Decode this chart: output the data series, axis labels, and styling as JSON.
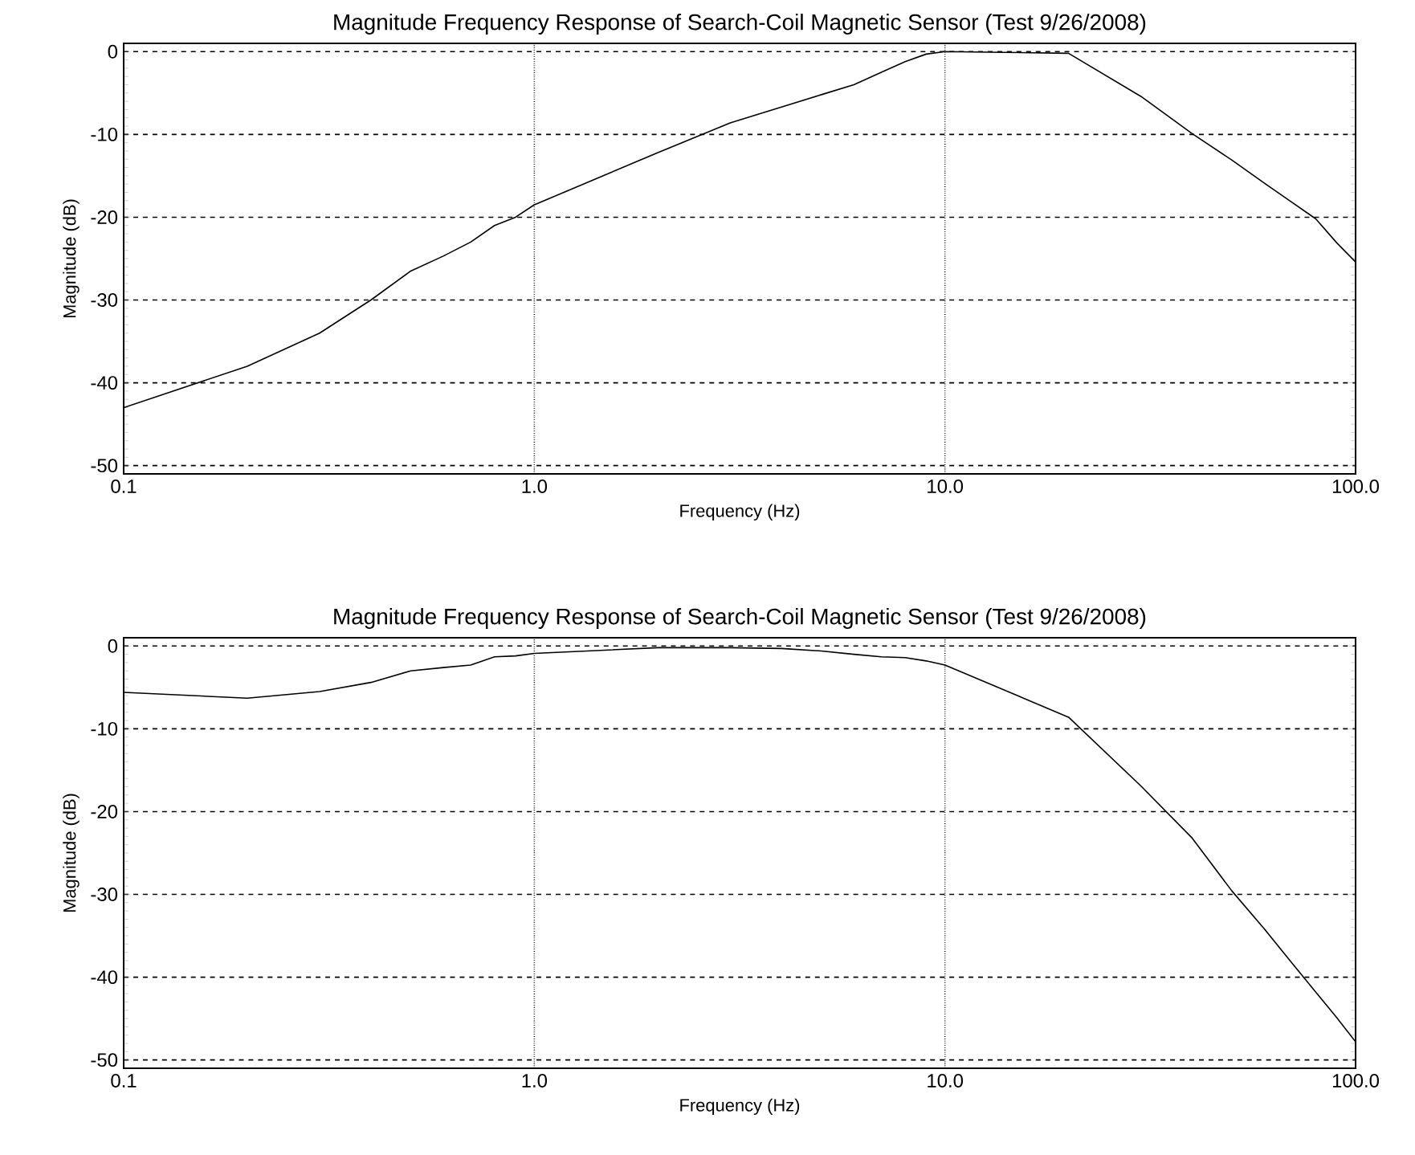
{
  "chart_data": [
    {
      "type": "line",
      "title": "Magnitude Frequency Response of Search-Coil Magnetic Sensor (Test 9/26/2008)",
      "xlabel": "Frequency (Hz)",
      "ylabel": "Magnitude (dB)",
      "log": "x",
      "grid": true,
      "marker": "none",
      "line_style": "solid",
      "x": [
        0.1,
        0.2,
        0.3,
        0.4,
        0.5,
        0.6,
        0.7,
        0.8,
        0.9,
        1,
        2,
        3,
        4,
        5,
        6,
        7,
        8,
        9,
        10,
        20,
        30,
        40,
        50,
        60,
        70,
        80,
        90,
        100
      ],
      "series": [
        {
          "color": "#000000",
          "values": [
            -43,
            -38,
            -34,
            -30,
            -26.5,
            -24.7,
            -23,
            -21,
            -20,
            -18.5,
            -12.2,
            -8.6,
            -6.7,
            -5.2,
            -4.0,
            -2.5,
            -1.2,
            -0.3,
            0,
            -0.2,
            -5.4,
            -9.9,
            -13.1,
            -15.9,
            -18.2,
            -20.2,
            -23.1,
            -25.4
          ]
        }
      ],
      "xlim": [
        0.1,
        100
      ],
      "ylim": [
        -51,
        1
      ],
      "xticks": [
        {
          "value": 0.1,
          "label": "0.1"
        },
        {
          "value": 1,
          "label": "1.0"
        },
        {
          "value": 10,
          "label": "10.0"
        },
        {
          "value": 100,
          "label": "100.0"
        }
      ],
      "yticks": [
        -50,
        -40,
        -30,
        -20,
        -10,
        0
      ]
    },
    {
      "type": "line",
      "title": "Magnitude Frequency Response of Search-Coil Magnetic Sensor (Test 9/26/2008)",
      "xlabel": "Frequency (Hz)",
      "ylabel": "Magnitude (dB)",
      "log": "x",
      "grid": true,
      "marker": "none",
      "line_style": "solid",
      "x": [
        0.1,
        0.2,
        0.3,
        0.4,
        0.5,
        0.6,
        0.7,
        0.8,
        0.9,
        1,
        2,
        3,
        4,
        5,
        6,
        7,
        8,
        9,
        10,
        20,
        30,
        40,
        50,
        60,
        70,
        80,
        90,
        100
      ],
      "series": [
        {
          "color": "#000000",
          "values": [
            -5.6,
            -6.3,
            -5.5,
            -4.4,
            -3.0,
            -2.6,
            -2.3,
            -1.3,
            -1.2,
            -0.9,
            -0.2,
            -0.2,
            -0.3,
            -0.6,
            -1.0,
            -1.3,
            -1.4,
            -1.8,
            -2.3,
            -8.6,
            -16.9,
            -23.2,
            -29.6,
            -34.2,
            -38.3,
            -41.8,
            -44.9,
            -47.8
          ]
        }
      ],
      "xlim": [
        0.1,
        100
      ],
      "ylim": [
        -51,
        1
      ],
      "xticks": [
        {
          "value": 0.1,
          "label": "0.1"
        },
        {
          "value": 1,
          "label": "1.0"
        },
        {
          "value": 10,
          "label": "10.0"
        },
        {
          "value": 100,
          "label": "100.0"
        }
      ],
      "yticks": [
        -50,
        -40,
        -30,
        -20,
        -10,
        0
      ]
    }
  ]
}
